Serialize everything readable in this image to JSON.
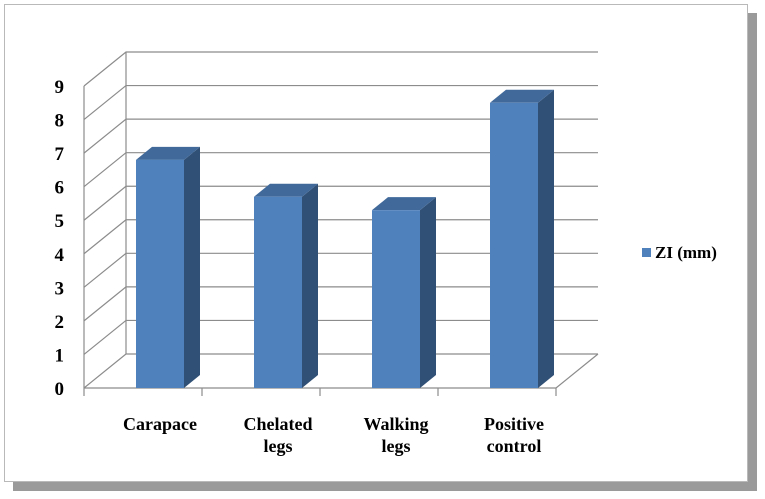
{
  "chart_data": {
    "type": "bar",
    "style": "3d-column",
    "categories": [
      [
        "Carapace"
      ],
      [
        "Chelated",
        "legs"
      ],
      [
        "Walking",
        "legs"
      ],
      [
        "Positive",
        "control"
      ]
    ],
    "series": [
      {
        "name": "ZI (mm)",
        "values": [
          6.8,
          5.7,
          5.3,
          8.5
        ],
        "color": "#4f81bd"
      }
    ],
    "yticks": [
      "0",
      "1",
      "2",
      "3",
      "4",
      "5",
      "6",
      "7",
      "8",
      "9"
    ],
    "ylim": [
      0,
      9
    ],
    "grid": true,
    "legend": "right",
    "title": "",
    "xlabel": "",
    "ylabel": ""
  }
}
